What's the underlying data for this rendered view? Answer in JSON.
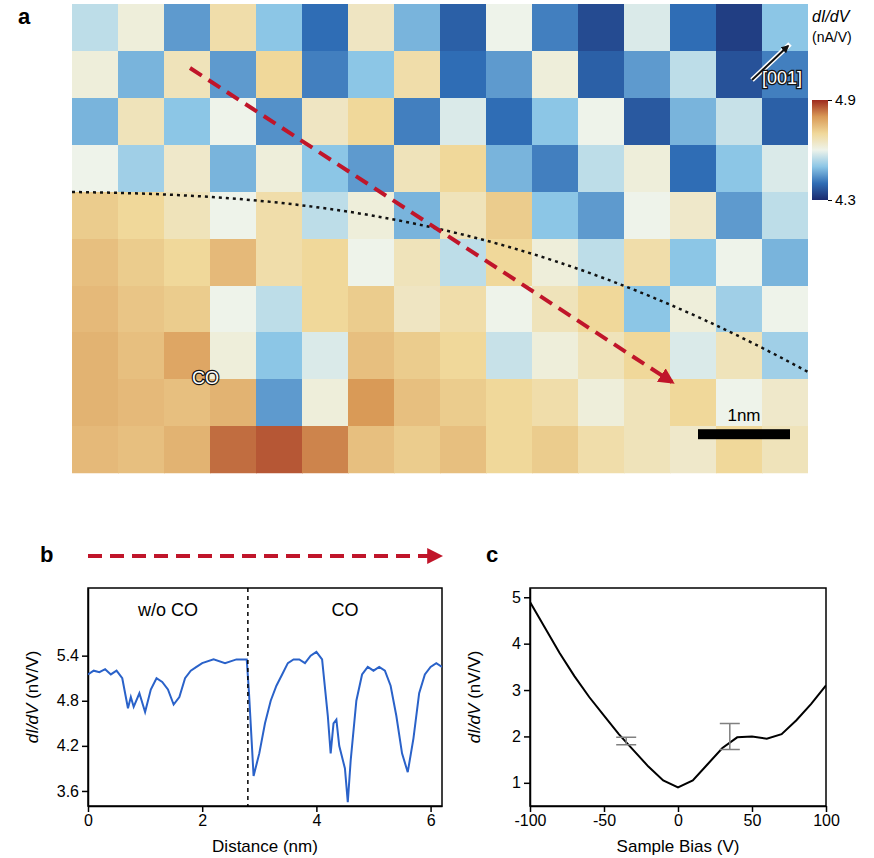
{
  "chart_data": [
    {
      "type": "heatmap",
      "panel_label": "a",
      "xlim": [
        0,
        8.0
      ],
      "ylim": [
        0,
        5.1
      ],
      "tick_labels": false,
      "cells": [
        [
          4.55,
          4.62,
          4.45,
          4.68,
          4.5,
          4.4,
          4.65,
          4.48,
          4.38,
          4.6,
          4.42,
          4.35,
          4.58,
          4.4,
          4.33,
          4.5
        ],
        [
          4.62,
          4.48,
          4.66,
          4.45,
          4.7,
          4.42,
          4.5,
          4.68,
          4.4,
          4.45,
          4.62,
          4.38,
          4.45,
          4.55,
          4.36,
          4.42
        ],
        [
          4.48,
          4.66,
          4.5,
          4.6,
          4.44,
          4.65,
          4.7,
          4.42,
          4.58,
          4.4,
          4.5,
          4.6,
          4.37,
          4.48,
          4.56,
          4.38
        ],
        [
          4.6,
          4.52,
          4.64,
          4.48,
          4.62,
          4.5,
          4.45,
          4.66,
          4.7,
          4.48,
          4.42,
          4.55,
          4.62,
          4.4,
          4.5,
          4.58
        ],
        [
          4.72,
          4.7,
          4.66,
          4.6,
          4.68,
          4.55,
          4.62,
          4.48,
          4.66,
          4.72,
          4.5,
          4.45,
          4.6,
          4.64,
          4.45,
          4.55
        ],
        [
          4.74,
          4.72,
          4.7,
          4.75,
          4.68,
          4.7,
          4.6,
          4.66,
          4.55,
          4.7,
          4.62,
          4.55,
          4.68,
          4.5,
          4.6,
          4.48
        ],
        [
          4.75,
          4.73,
          4.72,
          4.6,
          4.55,
          4.7,
          4.72,
          4.65,
          4.68,
          4.6,
          4.66,
          4.7,
          4.5,
          4.62,
          4.52,
          4.6
        ],
        [
          4.76,
          4.74,
          4.78,
          4.62,
          4.5,
          4.58,
          4.74,
          4.72,
          4.7,
          4.56,
          4.62,
          4.66,
          4.7,
          4.58,
          4.66,
          4.52
        ],
        [
          4.76,
          4.75,
          4.74,
          4.76,
          4.45,
          4.62,
          4.8,
          4.74,
          4.72,
          4.7,
          4.68,
          4.62,
          4.66,
          4.7,
          4.6,
          4.64
        ],
        [
          4.75,
          4.74,
          4.76,
          4.84,
          4.86,
          4.82,
          4.74,
          4.72,
          4.74,
          4.7,
          4.72,
          4.68,
          4.66,
          4.64,
          4.7,
          4.66
        ]
      ],
      "colorbar": {
        "title": "dI/dV",
        "unit": "(nA/V)",
        "range": [
          4.3,
          4.9
        ],
        "ticks": [
          4.3,
          4.9
        ]
      },
      "scale_bar": {
        "value": 1,
        "label": "1nm"
      },
      "annotations": [
        "[001]",
        "CO"
      ]
    },
    {
      "type": "line",
      "panel_label": "b",
      "x_label": "Distance (nm)",
      "y_label": "dI/dV (nV/V)",
      "xlim": [
        0,
        6.2
      ],
      "ylim": [
        3.4,
        6.3
      ],
      "xticks": [
        0,
        2,
        4,
        6
      ],
      "yticks": [
        3.6,
        4.2,
        4.8,
        5.4
      ],
      "divider_x": 2.8,
      "region_labels": [
        "w/o CO",
        "CO"
      ],
      "x": [
        0,
        0.1,
        0.2,
        0.3,
        0.4,
        0.5,
        0.6,
        0.7,
        0.75,
        0.8,
        0.9,
        1.0,
        1.1,
        1.2,
        1.3,
        1.4,
        1.5,
        1.6,
        1.7,
        1.8,
        1.9,
        2.0,
        2.2,
        2.4,
        2.6,
        2.78,
        2.82,
        2.9,
        3.0,
        3.1,
        3.2,
        3.3,
        3.4,
        3.5,
        3.6,
        3.7,
        3.8,
        3.9,
        4.0,
        4.1,
        4.2,
        4.25,
        4.3,
        4.35,
        4.4,
        4.5,
        4.55,
        4.6,
        4.7,
        4.8,
        4.9,
        5.0,
        5.1,
        5.2,
        5.3,
        5.4,
        5.5,
        5.6,
        5.7,
        5.8,
        5.9,
        6.0,
        6.1,
        6.2
      ],
      "series": [
        {
          "color": "#2a62c9",
          "values": [
            5.15,
            5.2,
            5.18,
            5.22,
            5.15,
            5.2,
            5.1,
            4.7,
            4.85,
            4.72,
            4.9,
            4.65,
            4.95,
            5.1,
            5.05,
            4.95,
            4.75,
            4.85,
            5.1,
            5.2,
            5.25,
            5.3,
            5.35,
            5.3,
            5.35,
            5.35,
            4.9,
            3.8,
            4.1,
            4.5,
            4.8,
            5.0,
            5.15,
            5.3,
            5.35,
            5.35,
            5.3,
            5.4,
            5.45,
            5.35,
            4.6,
            4.1,
            4.5,
            4.55,
            4.2,
            3.9,
            3.45,
            4.0,
            4.8,
            5.15,
            5.25,
            5.2,
            5.25,
            5.2,
            5.0,
            4.6,
            4.1,
            3.85,
            4.3,
            4.9,
            5.15,
            5.25,
            5.3,
            5.25
          ]
        }
      ]
    },
    {
      "type": "line",
      "panel_label": "c",
      "x_label": "Sample Bias (V)",
      "y_label": "dI/dV (nV/V)",
      "xlim": [
        -100,
        100
      ],
      "ylim": [
        0.5,
        5.2
      ],
      "xticks": [
        -100,
        -50,
        0,
        50,
        100
      ],
      "yticks": [
        1,
        2,
        3,
        4,
        5
      ],
      "x": [
        -100,
        -90,
        -80,
        -70,
        -60,
        -50,
        -40,
        -30,
        -20,
        -10,
        0,
        10,
        20,
        30,
        40,
        50,
        60,
        70,
        80,
        90,
        100
      ],
      "series": [
        {
          "color": "#000000",
          "values": [
            4.9,
            4.35,
            3.8,
            3.3,
            2.85,
            2.45,
            2.05,
            1.7,
            1.35,
            1.05,
            0.9,
            1.05,
            1.4,
            1.75,
            1.98,
            2.0,
            1.95,
            2.05,
            2.35,
            2.7,
            3.1
          ]
        }
      ],
      "error_bars": [
        {
          "x": -35,
          "value": 1.9,
          "error": 0.08
        },
        {
          "x": 35,
          "value": 2.0,
          "error": 0.28
        }
      ]
    }
  ]
}
